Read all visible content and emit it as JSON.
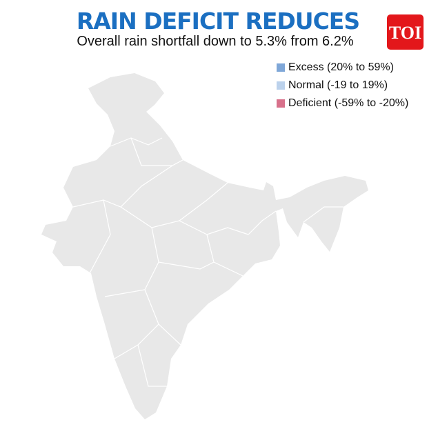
{
  "header": {
    "title": "RAIN DEFICIT REDUCES",
    "subtitle": "Overall rain shortfall down to 5.3% from 6.2%",
    "logo": "TOI"
  },
  "legend": [
    {
      "label": "Excess (20% to 59%)",
      "color": "#7fa7d8"
    },
    {
      "label": "Normal (-19 to 19%)",
      "color": "#bcd2ec"
    },
    {
      "label": "Deficient (-59% to -20%)",
      "color": "#d8718b"
    }
  ]
}
